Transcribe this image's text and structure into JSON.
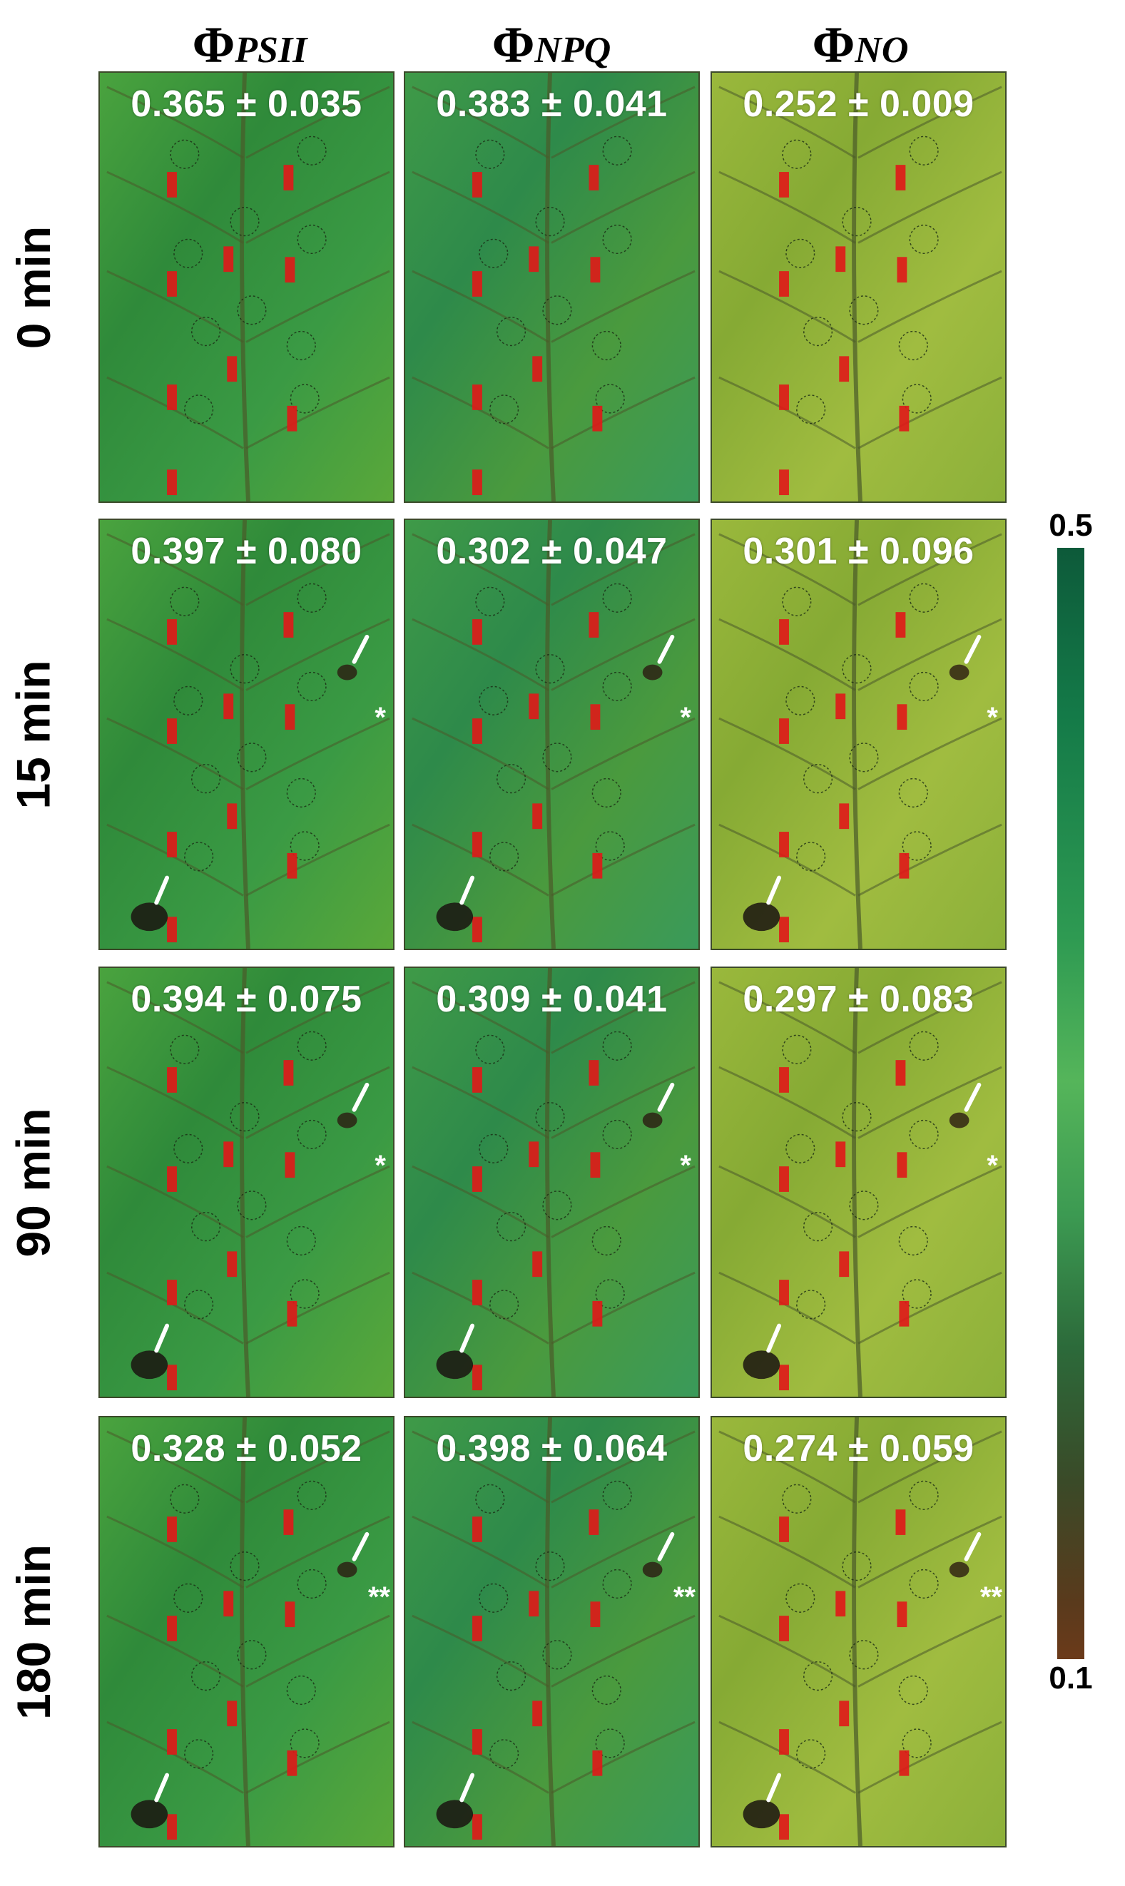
{
  "columns": [
    {
      "symbol": "Φ",
      "subscript": "PSII"
    },
    {
      "symbol": "Φ",
      "subscript": "NPQ"
    },
    {
      "symbol": "Φ",
      "subscript": "NO"
    }
  ],
  "rows": [
    {
      "label": "0 min",
      "values": [
        "0.365 ± 0.035",
        "0.383 ± 0.041",
        "0.252 ± 0.009"
      ],
      "marker": ""
    },
    {
      "label": "15 min",
      "values": [
        "0.397 ± 0.080",
        "0.302 ± 0.047",
        "0.301 ± 0.096"
      ],
      "marker": "*"
    },
    {
      "label": "90 min",
      "values": [
        "0.394 ± 0.075",
        "0.309 ± 0.041",
        "0.297 ± 0.083"
      ],
      "marker": "*"
    },
    {
      "label": "180 min",
      "values": [
        "0.328 ± 0.052",
        "0.398 ± 0.064",
        "0.274 ± 0.059"
      ],
      "marker": "**"
    }
  ],
  "scale": {
    "max": "0.5",
    "min": "0.1"
  },
  "colors": {
    "psii": "#3f9a3c",
    "npq": "#3d8f46",
    "no": "#8fae3a",
    "roi_mark": "#e01818",
    "vein": "#4a5a2a"
  }
}
